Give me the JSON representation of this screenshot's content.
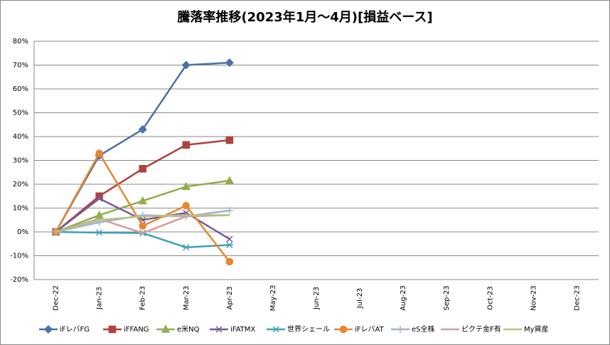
{
  "chart_data": {
    "type": "line",
    "title": "騰落率推移(2023年1月～4月)[損益ベース]",
    "categories": [
      "Dec-22",
      "Jan-23",
      "Feb-23",
      "Mar-23",
      "Apr-23",
      "May-23",
      "Jun-23",
      "Jul-23",
      "Aug-23",
      "Sep-23",
      "Oct-23",
      "Nov-23",
      "Dec-23"
    ],
    "ylim": [
      -20,
      80
    ],
    "yticks": [
      {
        "value": -20,
        "label": "-20%"
      },
      {
        "value": -10,
        "label": "-10%"
      },
      {
        "value": 0,
        "label": "0%"
      },
      {
        "value": 10,
        "label": "10%"
      },
      {
        "value": 20,
        "label": "20%"
      },
      {
        "value": 30,
        "label": "30%"
      },
      {
        "value": 40,
        "label": "40%"
      },
      {
        "value": 50,
        "label": "50%"
      },
      {
        "value": 60,
        "label": "60%"
      },
      {
        "value": 70,
        "label": "70%"
      },
      {
        "value": 80,
        "label": "80%"
      }
    ],
    "grid": true,
    "legend": "bottom",
    "series": [
      {
        "name": "iFレバFG",
        "color": "#4a72a8",
        "marker": "diamond",
        "values": [
          0,
          32,
          43,
          70,
          71,
          null,
          null,
          null,
          null,
          null,
          null,
          null,
          null
        ]
      },
      {
        "name": "iFFANG",
        "color": "#b0413e",
        "marker": "square",
        "values": [
          0,
          15,
          26.5,
          36.5,
          38.5,
          null,
          null,
          null,
          null,
          null,
          null,
          null,
          null
        ]
      },
      {
        "name": "e米NQ",
        "color": "#8db04a",
        "marker": "triangle",
        "values": [
          0,
          7,
          13,
          19,
          21.5,
          null,
          null,
          null,
          null,
          null,
          null,
          null,
          null
        ]
      },
      {
        "name": "iFATMX",
        "color": "#7a5a9a",
        "marker": "x",
        "values": [
          0,
          14,
          5,
          8,
          -3,
          null,
          null,
          null,
          null,
          null,
          null,
          null,
          null
        ]
      },
      {
        "name": "世界シェール",
        "color": "#3fa0b8",
        "marker": "star",
        "values": [
          0,
          -0.3,
          -0.5,
          -6.5,
          -5.5,
          null,
          null,
          null,
          null,
          null,
          null,
          null,
          null
        ]
      },
      {
        "name": "iFレバAT",
        "color": "#e8872e",
        "marker": "circle",
        "values": [
          0,
          33,
          2.5,
          11,
          -12.5,
          null,
          null,
          null,
          null,
          null,
          null,
          null,
          null
        ]
      },
      {
        "name": "eS全株",
        "color": "#9ab3d8",
        "marker": "plus",
        "values": [
          0,
          4,
          7,
          6.5,
          9,
          null,
          null,
          null,
          null,
          null,
          null,
          null,
          null
        ]
      },
      {
        "name": "ピクテ金F有",
        "color": "#d99a9a",
        "marker": "none",
        "values": [
          0,
          5.5,
          -0.5,
          6.5,
          7,
          null,
          null,
          null,
          null,
          null,
          null,
          null,
          null
        ]
      },
      {
        "name": "My資産",
        "color": "#b5c27f",
        "marker": "none",
        "values": [
          0,
          5,
          6.5,
          7,
          7,
          null,
          null,
          null,
          null,
          null,
          null,
          null,
          null
        ]
      }
    ]
  }
}
